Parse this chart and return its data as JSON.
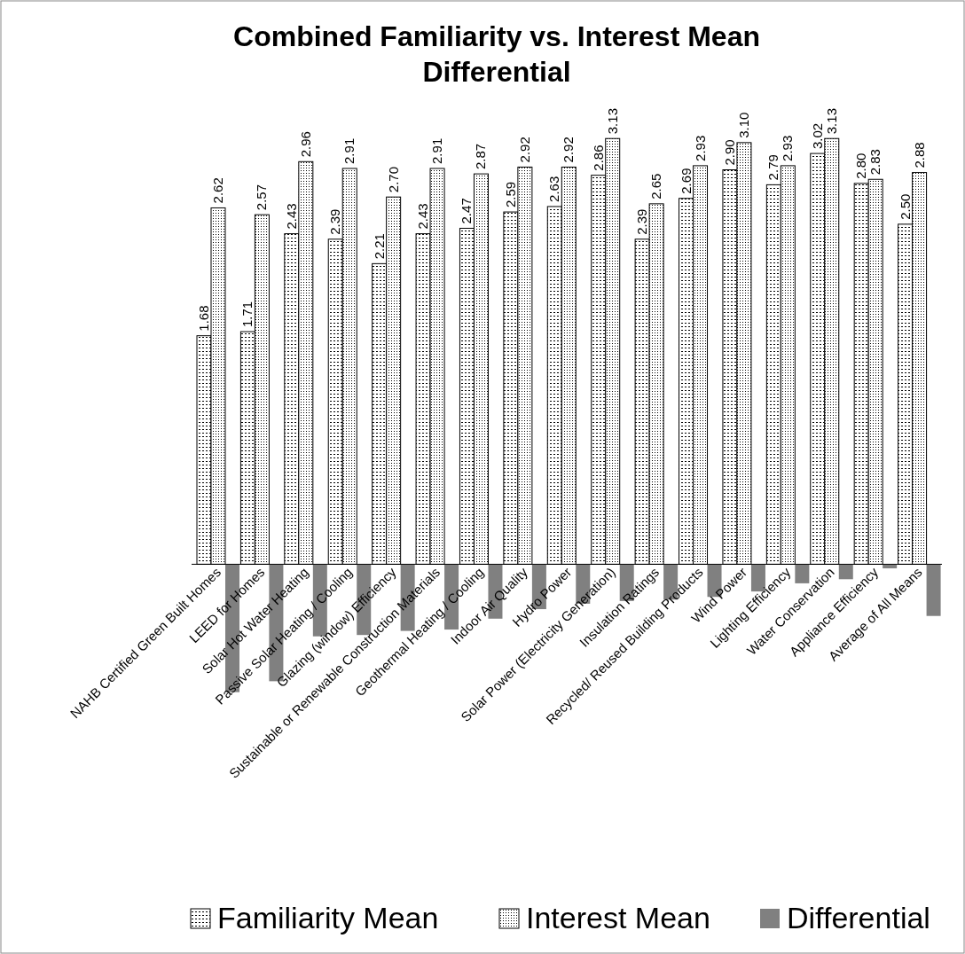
{
  "chart_data": {
    "type": "bar",
    "title": "Combined Familiarity vs. Interest Mean Differential",
    "categories": [
      "NAHB Certified Green Built Homes",
      "LEED for Homes",
      "Solar Hot Water Heating",
      "Passive Solar Heating / Cooling",
      "Glazing (window) Efficiency",
      "Sustainable or Renewable Construction Materials",
      "Geothermal Heating / Cooling",
      "Indoor Air Quality",
      "Hydro Power",
      "Solar Power (Electricity Generation)",
      "Insulation Ratings",
      "Recycled/ Reused Building Products",
      "Wind Power",
      "Lighting Efficiency",
      "Water Conservation",
      "Appliance Efficiency",
      "Average of All Means"
    ],
    "series": [
      {
        "name": "Familiarity Mean",
        "color": "#000000",
        "values": [
          1.68,
          1.71,
          2.43,
          2.39,
          2.21,
          2.43,
          2.47,
          2.59,
          2.63,
          2.86,
          2.39,
          2.69,
          2.9,
          2.79,
          3.02,
          2.8,
          2.5
        ],
        "value_labels": [
          "1.68",
          "1.71",
          "2.43",
          "2.39",
          "2.21",
          "2.43",
          "2.47",
          "2.59",
          "2.63",
          "2.86",
          "2.39",
          "2.69",
          "2.90",
          "2.79",
          "3.02",
          "2.80",
          "2.50"
        ]
      },
      {
        "name": "Interest Mean",
        "color": "#000000",
        "values": [
          2.62,
          2.57,
          2.96,
          2.91,
          2.7,
          2.91,
          2.87,
          2.92,
          2.92,
          3.13,
          2.65,
          2.93,
          3.1,
          2.93,
          3.13,
          2.83,
          2.88
        ],
        "value_labels": [
          "2.62",
          "2.57",
          "2.96",
          "2.91",
          "2.70",
          "2.91",
          "2.87",
          "2.92",
          "2.92",
          "3.13",
          "2.65",
          "2.93",
          "3.10",
          "2.93",
          "3.13",
          "2.83",
          "2.88"
        ]
      },
      {
        "name": "Differential",
        "color": "#808080",
        "values": [
          -0.94,
          -0.86,
          -0.53,
          -0.52,
          -0.49,
          -0.48,
          -0.4,
          -0.33,
          -0.29,
          -0.27,
          -0.26,
          -0.24,
          -0.2,
          -0.14,
          -0.11,
          -0.03,
          -0.38
        ]
      }
    ],
    "legend": "bottom"
  }
}
